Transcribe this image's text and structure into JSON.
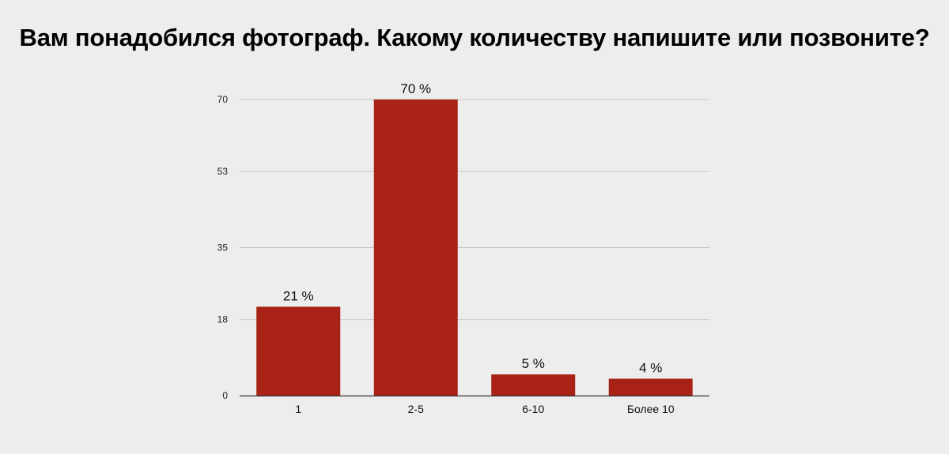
{
  "chart_data": {
    "type": "bar",
    "title": "Вам понадобился фотограф. Какому количеству напишите или позвоните?",
    "categories": [
      "1",
      "2-5",
      "6-10",
      "Более 10"
    ],
    "values": [
      21,
      70,
      5,
      4
    ],
    "data_labels": [
      "21 %",
      "70 %",
      "5 %",
      "4 %"
    ],
    "y_ticks": [
      0,
      18,
      35,
      53,
      70
    ],
    "ylim": [
      0,
      70
    ],
    "xlabel": "",
    "ylabel": "",
    "grid": true,
    "legend": "none",
    "colors": {
      "bar": "#a82315",
      "grid": "#c8c8c8",
      "axis": "#333333",
      "background": "#ededed"
    }
  }
}
